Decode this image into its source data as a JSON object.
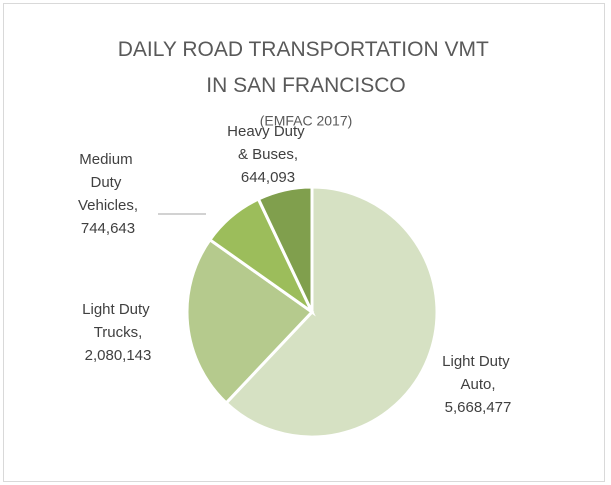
{
  "chart_data": {
    "type": "pie",
    "title": "DAILY ROAD TRANSPORTATION VMT IN SAN FRANCISCO",
    "subtitle": "(EMFAC 2017)",
    "categories": [
      "Light Duty Auto",
      "Light Duty Trucks",
      "Medium Duty Vehicles",
      "Heavy Duty & Buses"
    ],
    "values": [
      5668477,
      2080143,
      744643,
      644093
    ],
    "value_labels": [
      "5,668,477",
      "2,080,143",
      "744,643",
      "644,093"
    ],
    "label_separator": ",",
    "colors": [
      "#d6e1c3",
      "#b5ca8d",
      "#9cbd5b",
      "#809f4d"
    ]
  }
}
